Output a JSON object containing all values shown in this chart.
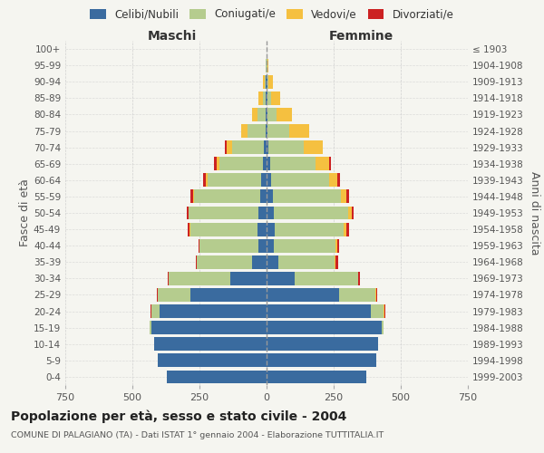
{
  "age_groups": [
    "0-4",
    "5-9",
    "10-14",
    "15-19",
    "20-24",
    "25-29",
    "30-34",
    "35-39",
    "40-44",
    "45-49",
    "50-54",
    "55-59",
    "60-64",
    "65-69",
    "70-74",
    "75-79",
    "80-84",
    "85-89",
    "90-94",
    "95-99",
    "100+"
  ],
  "birth_years": [
    "1999-2003",
    "1994-1998",
    "1989-1993",
    "1984-1988",
    "1979-1983",
    "1974-1978",
    "1969-1973",
    "1964-1968",
    "1959-1963",
    "1954-1958",
    "1949-1953",
    "1944-1948",
    "1939-1943",
    "1934-1938",
    "1929-1933",
    "1924-1928",
    "1919-1923",
    "1914-1918",
    "1909-1913",
    "1904-1908",
    "≤ 1903"
  ],
  "male_celibi": [
    370,
    405,
    420,
    430,
    400,
    285,
    135,
    55,
    30,
    35,
    30,
    25,
    20,
    15,
    10,
    5,
    3,
    2,
    2,
    0,
    0
  ],
  "male_coniugati": [
    0,
    0,
    0,
    5,
    30,
    120,
    230,
    205,
    220,
    250,
    260,
    245,
    200,
    160,
    120,
    65,
    30,
    12,
    5,
    2,
    0
  ],
  "male_vedovi": [
    0,
    0,
    0,
    0,
    0,
    0,
    0,
    0,
    0,
    1,
    2,
    3,
    5,
    10,
    20,
    25,
    20,
    15,
    8,
    3,
    0
  ],
  "male_divorziati": [
    0,
    0,
    0,
    0,
    2,
    3,
    2,
    3,
    3,
    8,
    5,
    10,
    12,
    10,
    5,
    0,
    0,
    0,
    0,
    0,
    0
  ],
  "female_celibi": [
    370,
    410,
    415,
    430,
    390,
    270,
    105,
    45,
    28,
    32,
    28,
    22,
    18,
    12,
    8,
    5,
    3,
    2,
    2,
    0,
    0
  ],
  "female_coniugati": [
    0,
    0,
    0,
    5,
    45,
    135,
    235,
    210,
    230,
    255,
    275,
    255,
    215,
    170,
    130,
    80,
    35,
    15,
    5,
    3,
    0
  ],
  "female_vedovi": [
    0,
    0,
    0,
    0,
    3,
    3,
    2,
    3,
    5,
    10,
    15,
    20,
    30,
    50,
    70,
    75,
    55,
    35,
    18,
    5,
    0
  ],
  "female_divorziati": [
    0,
    0,
    0,
    0,
    3,
    5,
    5,
    8,
    8,
    10,
    8,
    12,
    10,
    8,
    3,
    0,
    0,
    0,
    0,
    0,
    0
  ],
  "color_celibi": "#3a6b9f",
  "color_coniugati": "#b5cc8e",
  "color_vedovi": "#f5c040",
  "color_divorziati": "#cc2222",
  "title": "Popolazione per età, sesso e stato civile - 2004",
  "subtitle": "COMUNE DI PALAGIANO (TA) - Dati ISTAT 1° gennaio 2004 - Elaborazione TUTTITALIA.IT",
  "xlabel_left": "Maschi",
  "xlabel_right": "Femmine",
  "ylabel_left": "Fasce di età",
  "ylabel_right": "Anni di nascita",
  "xlim": 750,
  "background_color": "#f5f5f0",
  "grid_color": "#cccccc"
}
